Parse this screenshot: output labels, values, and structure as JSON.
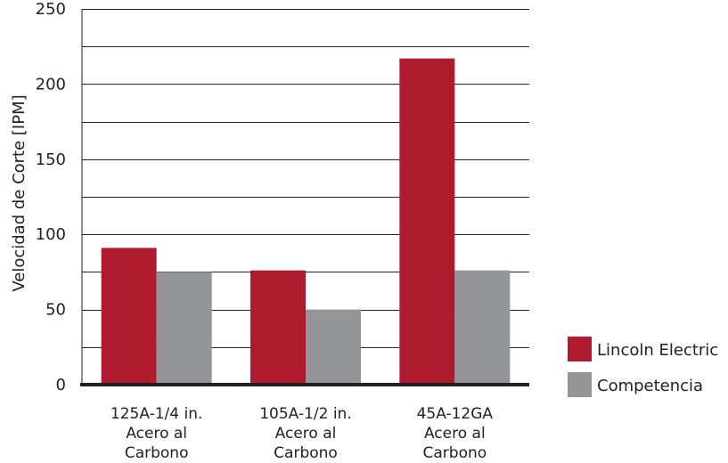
{
  "chart_data": {
    "type": "bar",
    "title": "",
    "xlabel": "",
    "ylabel": "Velocidad de Corte [IPM]",
    "ylim": [
      0,
      250
    ],
    "yticks": [
      0,
      50,
      100,
      150,
      200,
      250
    ],
    "minor_gridlines": [
      25,
      75,
      125,
      175,
      225
    ],
    "grid": true,
    "legend_position": "right",
    "categories": [
      [
        "125A-1/4 in.",
        "Acero al",
        "Carbono"
      ],
      [
        "105A-1/2 in.",
        "Acero al",
        "Carbono"
      ],
      [
        "45A-12GA",
        "Acero al",
        "Carbono"
      ]
    ],
    "series": [
      {
        "name": "Lincoln Electric",
        "color": "#ae1a2e",
        "values": [
          91,
          76,
          217
        ]
      },
      {
        "name": "Competencia",
        "color": "#939598",
        "values": [
          75,
          50,
          76
        ]
      }
    ]
  }
}
